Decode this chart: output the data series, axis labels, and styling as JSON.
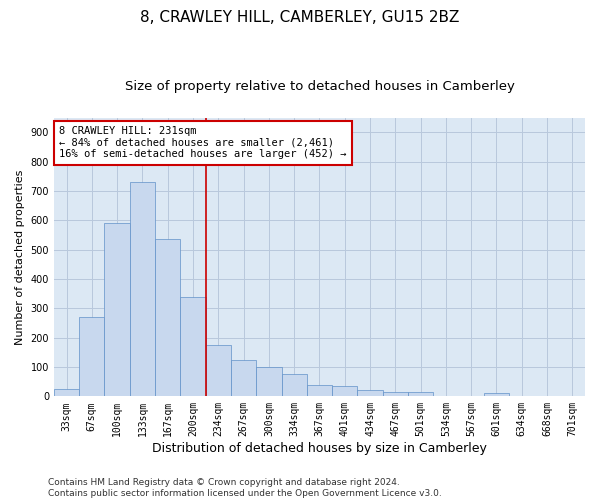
{
  "title": "8, CRAWLEY HILL, CAMBERLEY, GU15 2BZ",
  "subtitle": "Size of property relative to detached houses in Camberley",
  "xlabel": "Distribution of detached houses by size in Camberley",
  "ylabel": "Number of detached properties",
  "bar_labels": [
    "33sqm",
    "67sqm",
    "100sqm",
    "133sqm",
    "167sqm",
    "200sqm",
    "234sqm",
    "267sqm",
    "300sqm",
    "334sqm",
    "367sqm",
    "401sqm",
    "434sqm",
    "467sqm",
    "501sqm",
    "534sqm",
    "567sqm",
    "601sqm",
    "634sqm",
    "668sqm",
    "701sqm"
  ],
  "bar_values": [
    25,
    270,
    590,
    730,
    535,
    340,
    175,
    125,
    100,
    75,
    40,
    35,
    20,
    15,
    15,
    0,
    0,
    12,
    0,
    0,
    0
  ],
  "bar_color": "#c8d8ee",
  "bar_edge_color": "#6090c8",
  "property_line_x": 5.5,
  "annotation_line1": "8 CRAWLEY HILL: 231sqm",
  "annotation_line2": "← 84% of detached houses are smaller (2,461)",
  "annotation_line3": "16% of semi-detached houses are larger (452) →",
  "annotation_box_color": "#ffffff",
  "annotation_box_edge_color": "#cc0000",
  "vline_color": "#cc0000",
  "ylim": [
    0,
    950
  ],
  "yticks": [
    0,
    100,
    200,
    300,
    400,
    500,
    600,
    700,
    800,
    900
  ],
  "grid_color": "#b8c8dc",
  "footnote1": "Contains HM Land Registry data © Crown copyright and database right 2024.",
  "footnote2": "Contains public sector information licensed under the Open Government Licence v3.0.",
  "bg_color": "#dce8f4",
  "plot_bg_color": "#dce8f4",
  "title_fontsize": 11,
  "subtitle_fontsize": 9.5,
  "xlabel_fontsize": 9,
  "ylabel_fontsize": 8,
  "tick_fontsize": 7,
  "annotation_fontsize": 7.5,
  "footnote_fontsize": 6.5
}
